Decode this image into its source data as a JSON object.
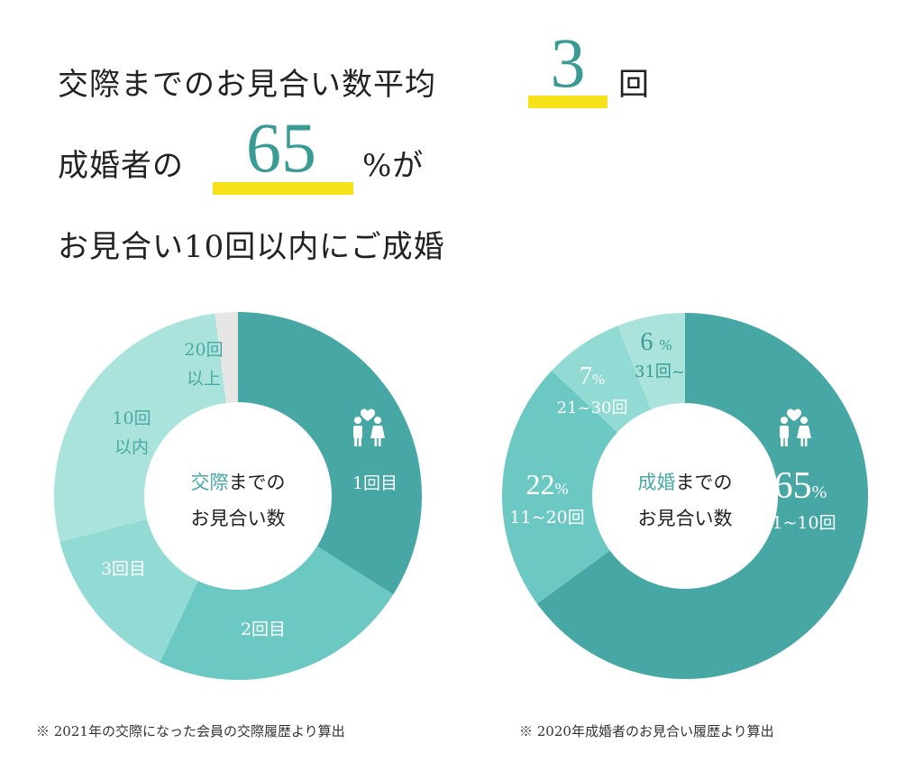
{
  "headline": {
    "line1_text": "交際までのお見合い数平均",
    "line1_number": "3",
    "line1_suffix": "回",
    "line2_text": "成婚者の",
    "line2_number": "65",
    "line2_suffix": "%が",
    "line3_text": "お見合い10回以内にご成婚"
  },
  "colors": {
    "accent": "#3a9b95",
    "underline": "#f7e21a",
    "seg_dark": "#47a7a5",
    "seg_mid": "#6cc8c2",
    "seg_light": "#92dbd4",
    "seg_pale": "#a9e3dc",
    "seg_grey": "#e6e6e6"
  },
  "chart_data": [
    {
      "type": "pie",
      "center_label": {
        "accent": "交際",
        "rest1": "までの",
        "line2": "お見合い数"
      },
      "slices": [
        {
          "label": "1回目",
          "value": 34
        },
        {
          "label": "2回目",
          "value": 23
        },
        {
          "label": "3回目",
          "value": 14
        },
        {
          "label": "10回以内",
          "value": 27
        },
        {
          "label": "20回以上",
          "value": 2
        }
      ]
    },
    {
      "type": "pie",
      "center_label": {
        "accent": "成婚",
        "rest1": "までの",
        "line2": "お見合い数"
      },
      "slices": [
        {
          "label": "1~10回",
          "value": 65,
          "value_label": "65%"
        },
        {
          "label": "11~20回",
          "value": 22,
          "value_label": "22%"
        },
        {
          "label": "21~30回",
          "value": 7,
          "value_label": "7%"
        },
        {
          "label": "31回~",
          "value": 6,
          "value_label": "6%"
        }
      ]
    }
  ],
  "notes": {
    "left": "※ 2021年の交際になった会員の交際履歴より算出",
    "right": "※ 2020年成婚者のお見合い履歴より算出"
  }
}
